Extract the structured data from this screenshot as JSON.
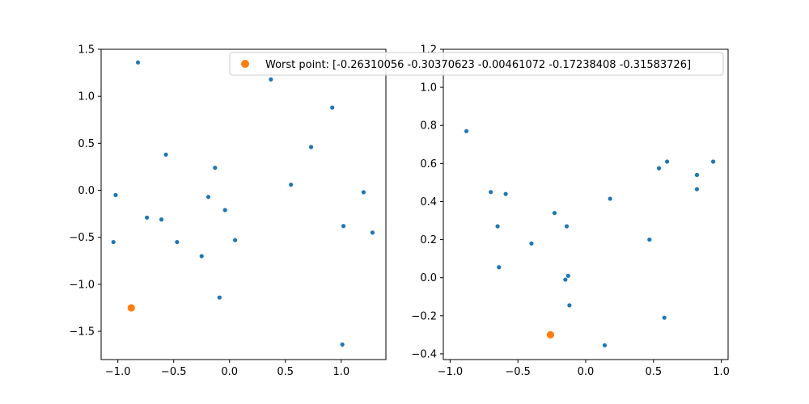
{
  "figure": {
    "background": "#ffffff"
  },
  "legend": {
    "label": "Worst point: [-0.26310056 -0.30370623 -0.00461072 -0.17238408 -0.31583726]",
    "placement": "top-right",
    "color": "#ff7f0e"
  },
  "chart_data": [
    {
      "type": "scatter",
      "title": "",
      "xlabel": "",
      "ylabel": "",
      "xlim": [
        -1.15,
        1.4
      ],
      "ylim": [
        -1.8,
        1.5
      ],
      "xticks": [
        "−1.0",
        "−0.5",
        "0.0",
        "0.5",
        "1.0"
      ],
      "xtick_values": [
        -1.0,
        -0.5,
        0.0,
        0.5,
        1.0
      ],
      "yticks": [
        "−1.5",
        "−1.0",
        "−0.5",
        "0.0",
        "0.5",
        "1.0",
        "1.5"
      ],
      "ytick_values": [
        -1.5,
        -1.0,
        -0.5,
        0.0,
        0.5,
        1.0,
        1.5
      ],
      "grid": false,
      "series": [
        {
          "color": "#1f77b4",
          "points": [
            [
              -0.82,
              1.36
            ],
            [
              0.37,
              1.18
            ],
            [
              0.92,
              0.88
            ],
            [
              0.73,
              0.46
            ],
            [
              -0.57,
              0.38
            ],
            [
              -0.13,
              0.24
            ],
            [
              0.55,
              0.06
            ],
            [
              -1.02,
              -0.05
            ],
            [
              -0.19,
              -0.07
            ],
            [
              1.2,
              -0.02
            ],
            [
              -0.04,
              -0.21
            ],
            [
              -0.74,
              -0.29
            ],
            [
              -0.61,
              -0.31
            ],
            [
              1.02,
              -0.38
            ],
            [
              1.28,
              -0.45
            ],
            [
              -1.04,
              -0.55
            ],
            [
              -0.47,
              -0.55
            ],
            [
              0.05,
              -0.53
            ],
            [
              -0.25,
              -0.7
            ],
            [
              -0.09,
              -1.14
            ],
            [
              1.01,
              -1.64
            ]
          ]
        },
        {
          "name": "Worst point: [-0.26310056 -0.30370623 -0.00461072 -0.17238408 -0.31583726]",
          "color": "#ff7f0e",
          "points": [
            [
              -0.88,
              -1.25
            ]
          ]
        }
      ]
    },
    {
      "type": "scatter",
      "title": "",
      "xlabel": "",
      "ylabel": "",
      "xlim": [
        -1.05,
        1.05
      ],
      "ylim": [
        -0.43,
        1.2
      ],
      "xticks": [
        "−1.0",
        "−0.5",
        "0.0",
        "0.5",
        "1.0"
      ],
      "xtick_values": [
        -1.0,
        -0.5,
        0.0,
        0.5,
        1.0
      ],
      "yticks": [
        "−0.4",
        "−0.2",
        "0.0",
        "0.2",
        "0.4",
        "0.6",
        "0.8",
        "1.0",
        "1.2"
      ],
      "ytick_values": [
        -0.4,
        -0.2,
        0.0,
        0.2,
        0.4,
        0.6,
        0.8,
        1.0,
        1.2
      ],
      "grid": false,
      "series": [
        {
          "color": "#1f77b4",
          "points": [
            [
              -0.88,
              0.77
            ],
            [
              0.6,
              0.61
            ],
            [
              0.94,
              0.61
            ],
            [
              0.54,
              0.575
            ],
            [
              0.82,
              0.54
            ],
            [
              0.82,
              0.465
            ],
            [
              -0.7,
              0.45
            ],
            [
              -0.59,
              0.44
            ],
            [
              0.18,
              0.415
            ],
            [
              -0.23,
              0.34
            ],
            [
              -0.65,
              0.27
            ],
            [
              -0.14,
              0.27
            ],
            [
              0.47,
              0.2
            ],
            [
              -0.4,
              0.18
            ],
            [
              -0.64,
              0.055
            ],
            [
              -0.13,
              0.01
            ],
            [
              -0.15,
              -0.01
            ],
            [
              -0.12,
              -0.145
            ],
            [
              0.58,
              -0.21
            ],
            [
              0.14,
              -0.355
            ]
          ]
        },
        {
          "name": "Worst point: [-0.26310056 -0.30370623 -0.00461072 -0.17238408 -0.31583726]",
          "color": "#ff7f0e",
          "points": [
            [
              -0.26,
              -0.3
            ]
          ]
        }
      ]
    }
  ]
}
